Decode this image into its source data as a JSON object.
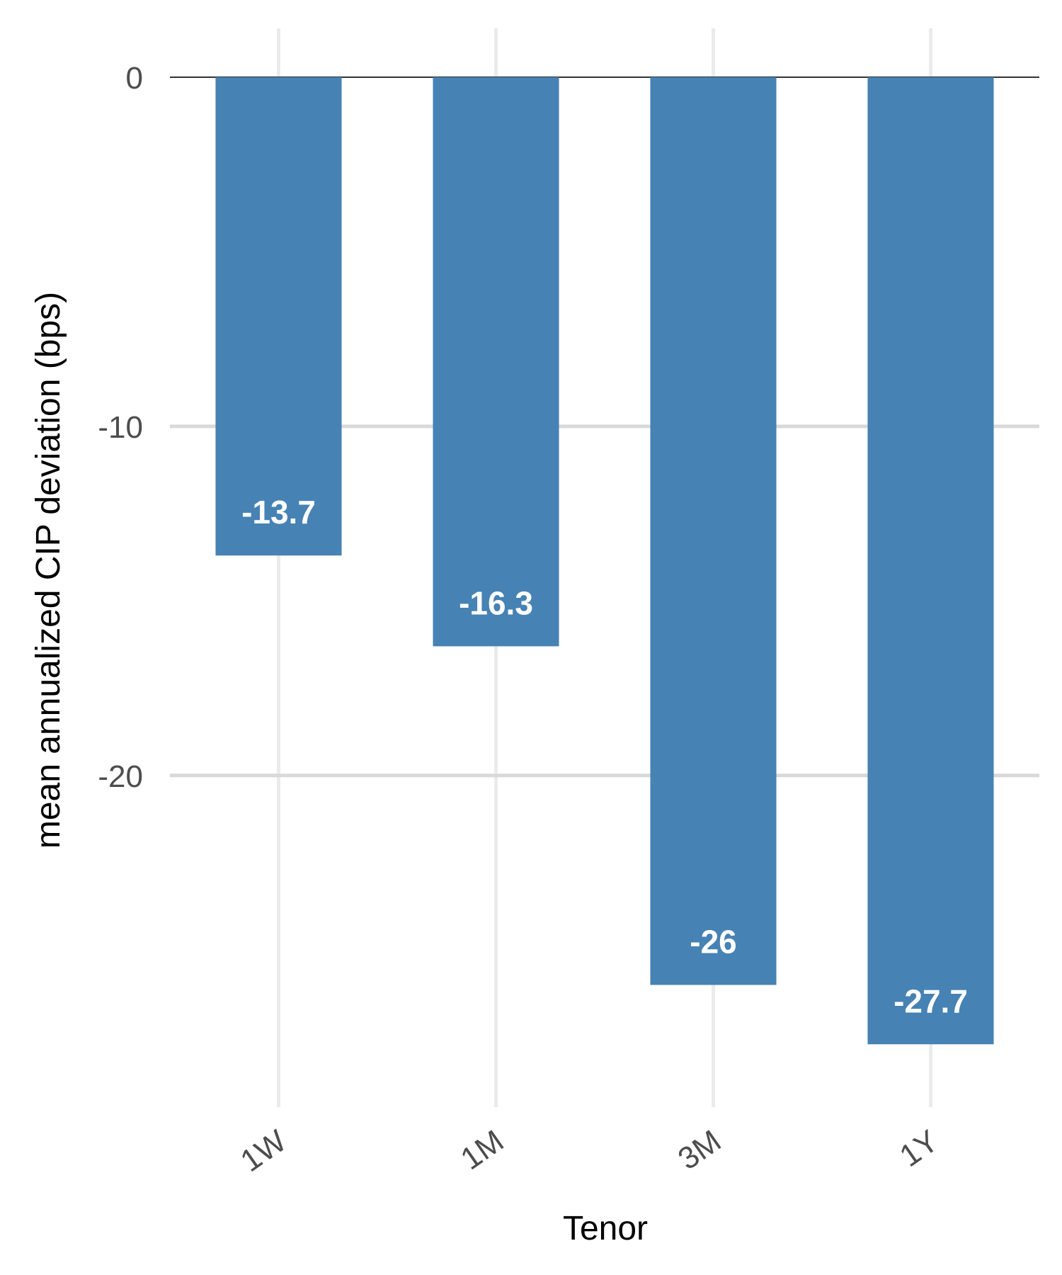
{
  "chart_data": {
    "type": "bar",
    "categories": [
      "1W",
      "1M",
      "3M",
      "1Y"
    ],
    "values": [
      -13.7,
      -16.3,
      -26,
      -27.7
    ],
    "data_labels": [
      "-13.7",
      "-16.3",
      "-26",
      "-27.7"
    ],
    "title": "",
    "xlabel": "Tenor",
    "ylabel": "mean annualized CIP deviation (bps)",
    "ylim": [
      -29.5,
      1.4
    ],
    "yticks": [
      0,
      -10,
      -20
    ],
    "ytick_labels": [
      "0",
      "-10",
      "-20"
    ],
    "bar_color": "#4682b4",
    "grid": true,
    "legend": "none"
  }
}
